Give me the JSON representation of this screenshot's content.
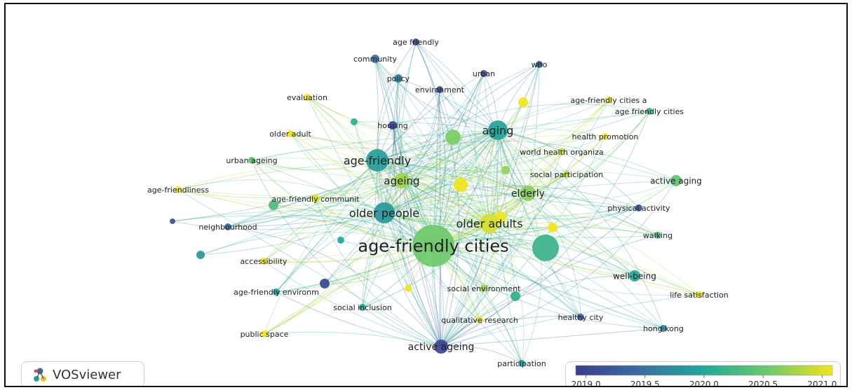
{
  "app": {
    "brand": "VOSviewer",
    "brand_icon": "vosviewer-logo-icon"
  },
  "legend": {
    "ticks": [
      "2019.0",
      "2019.5",
      "2020.0",
      "2020.5",
      "2021.0"
    ],
    "min": 2019.0,
    "max": 2021.0,
    "colors": [
      "#3d3b8c",
      "#3a6fa0",
      "#21a89a",
      "#6cc96a",
      "#f2e41b"
    ]
  },
  "nodes": [
    {
      "id": "af_cities",
      "label": "age-friendly cities",
      "year": 2020.5,
      "weight": 10
    },
    {
      "id": "aging",
      "label": "aging",
      "year": 2019.95,
      "weight": 5
    },
    {
      "id": "age_friendly",
      "label": "age-friendly",
      "year": 2019.9,
      "weight": 6
    },
    {
      "id": "older_people",
      "label": "older people",
      "year": 2019.85,
      "weight": 6
    },
    {
      "id": "older_adults",
      "label": "older adults",
      "year": 2020.9,
      "weight": 7
    },
    {
      "id": "ageing",
      "label": "ageing",
      "year": 2020.7,
      "weight": 4
    },
    {
      "id": "elderly",
      "label": "elderly",
      "year": 2020.6,
      "weight": 4
    },
    {
      "id": "age_friendly_sp",
      "label": "age friendly",
      "year": 2019.1,
      "weight": 1
    },
    {
      "id": "community",
      "label": "community",
      "year": 2019.5,
      "weight": 1
    },
    {
      "id": "policy",
      "label": "policy",
      "year": 2019.7,
      "weight": 1
    },
    {
      "id": "urban",
      "label": "urban",
      "year": 2019.2,
      "weight": 1
    },
    {
      "id": "who",
      "label": "who",
      "year": 2019.3,
      "weight": 1
    },
    {
      "id": "environment",
      "label": "environment",
      "year": 2019.1,
      "weight": 1
    },
    {
      "id": "evaluation",
      "label": "evaluation",
      "year": 2021.0,
      "weight": 1
    },
    {
      "id": "afc_a",
      "label": "age-friendly cities a",
      "year": 2021.0,
      "weight": 1
    },
    {
      "id": "afc_sp",
      "label": "age friendly cities",
      "year": 2020.2,
      "weight": 1
    },
    {
      "id": "housing",
      "label": "housing",
      "year": 2019.1,
      "weight": 1
    },
    {
      "id": "older_adult",
      "label": "older adult",
      "year": 2021.0,
      "weight": 1
    },
    {
      "id": "health_promotion",
      "label": "health promotion",
      "year": 2021.0,
      "weight": 1
    },
    {
      "id": "who_org",
      "label": "world health organiza",
      "year": 2020.9,
      "weight": 1
    },
    {
      "id": "urban_ageing",
      "label": "urban ageing",
      "year": 2020.4,
      "weight": 1
    },
    {
      "id": "social_participation",
      "label": "social participation",
      "year": 2020.8,
      "weight": 1
    },
    {
      "id": "active_aging",
      "label": "active aging",
      "year": 2020.4,
      "weight": 2
    },
    {
      "id": "age_friendliness",
      "label": "age-friendliness",
      "year": 2021.0,
      "weight": 1
    },
    {
      "id": "afc_community",
      "label": "age-friendly communit",
      "year": 2020.9,
      "weight": 1
    },
    {
      "id": "physical_activity",
      "label": "physical activity",
      "year": 2019.2,
      "weight": 1
    },
    {
      "id": "neighbourhood",
      "label": "neighbourhood",
      "year": 2019.5,
      "weight": 1
    },
    {
      "id": "walking",
      "label": "walking",
      "year": 2020.3,
      "weight": 1
    },
    {
      "id": "accessibility",
      "label": "accessibility",
      "year": 2021.0,
      "weight": 1
    },
    {
      "id": "well_being",
      "label": "well-being",
      "year": 2020.0,
      "weight": 2
    },
    {
      "id": "social_environment",
      "label": "social environment",
      "year": 2020.7,
      "weight": 1
    },
    {
      "id": "life_satisfaction",
      "label": "life satisfaction",
      "year": 2021.0,
      "weight": 1
    },
    {
      "id": "af_environment",
      "label": "age-friendly environm",
      "year": 2019.9,
      "weight": 1
    },
    {
      "id": "social_inclusion",
      "label": "social inclusion",
      "year": 2020.0,
      "weight": 1
    },
    {
      "id": "healthy_city",
      "label": "healthy city",
      "year": 2019.3,
      "weight": 1
    },
    {
      "id": "qualitative_research",
      "label": "qualitative research",
      "year": 2021.0,
      "weight": 1
    },
    {
      "id": "hong_kong",
      "label": "hong kong",
      "year": 2019.6,
      "weight": 1
    },
    {
      "id": "public_space",
      "label": "public space",
      "year": 2021.0,
      "weight": 1
    },
    {
      "id": "active_ageing",
      "label": "active ageing",
      "year": 2019.1,
      "weight": 4
    },
    {
      "id": "participation",
      "label": "participation",
      "year": 2019.9,
      "weight": 1
    }
  ]
}
